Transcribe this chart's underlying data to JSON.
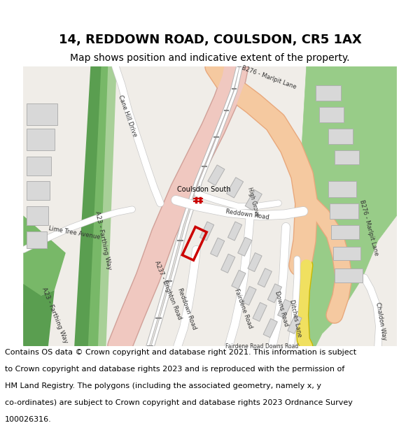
{
  "title": "14, REDDOWN ROAD, COULSDON, CR5 1AX",
  "subtitle": "Map shows position and indicative extent of the property.",
  "footer_line1": "Contains OS data © Crown copyright and database right 2021. This information is subject",
  "footer_line2": "to Crown copyright and database rights 2023 and is reproduced with the permission of",
  "footer_line3": "HM Land Registry. The polygons (including the associated geometry, namely x, y",
  "footer_line4": "co-ordinates) are subject to Crown copyright and database rights 2023 Ordnance Survey",
  "footer_line5": "100026316.",
  "map_bg": "#f0ede8",
  "major_road_fill": "#f5c9a0",
  "major_road_outline": "#e8a87c",
  "yellow_road_fill": "#f0e060",
  "yellow_road_outline": "#c8b800",
  "pink_road_fill": "#f0c8c0",
  "pink_road_outline": "#d0a098",
  "road_fill": "#ffffff",
  "road_outline": "#c8c8c8",
  "green_dark": "#5a9e50",
  "green_mid": "#78b868",
  "green_light": "#a8d098",
  "green_park": "#98cc88",
  "building_fill": "#d8d8d8",
  "building_outline": "#b0b0b0",
  "property_color": "#cc0000",
  "title_fontsize": 13,
  "subtitle_fontsize": 10,
  "footer_fontsize": 8
}
